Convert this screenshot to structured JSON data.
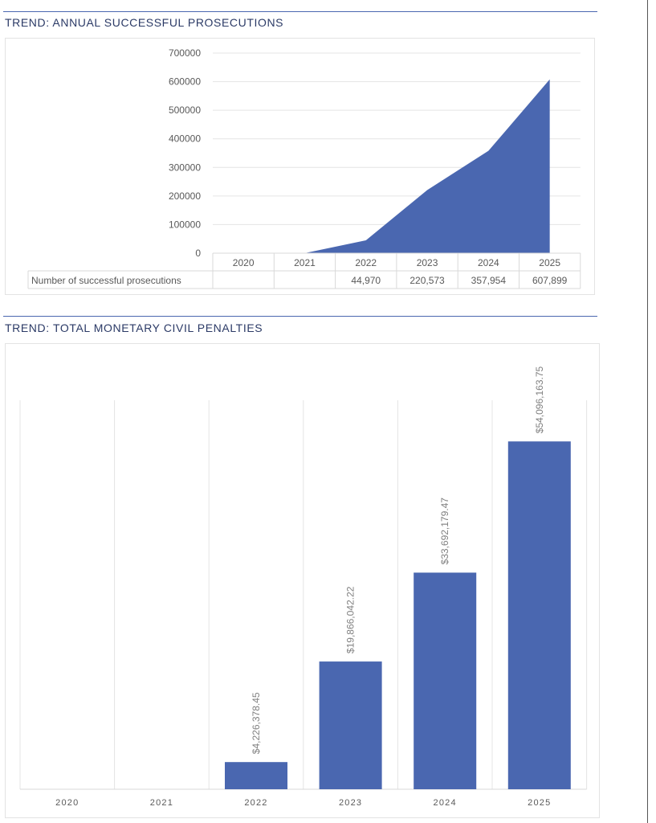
{
  "chart_data": [
    {
      "type": "area",
      "title": "TREND: ANNUAL SUCCESSFUL PROSECUTIONS",
      "categories": [
        "2020",
        "2021",
        "2022",
        "2023",
        "2024",
        "2025"
      ],
      "series": [
        {
          "name": "Number of successful prosecutions",
          "values": [
            null,
            0,
            44970,
            220573,
            357954,
            607899
          ],
          "labels": [
            "",
            "",
            "44,970",
            "220,573",
            "357,954",
            "607,899"
          ]
        }
      ],
      "yticks": [
        "0",
        "100000",
        "200000",
        "300000",
        "400000",
        "500000",
        "600000",
        "700000"
      ],
      "ylim": [
        0,
        700000
      ],
      "grid": true,
      "color": "#4a67b0"
    },
    {
      "type": "bar",
      "title": "TREND: TOTAL MONETARY CIVIL PENALTIES",
      "categories": [
        "2020",
        "2021",
        "2022",
        "2023",
        "2024",
        "2025"
      ],
      "values": [
        null,
        null,
        4226378.45,
        19866042.22,
        33692179.47,
        54096163.75
      ],
      "labels": [
        "",
        "",
        "$4,226,378.45",
        "$19,866,042.22",
        "$33,692,179.47",
        "$54,096,163.75"
      ],
      "color": "#4a67b0"
    }
  ]
}
